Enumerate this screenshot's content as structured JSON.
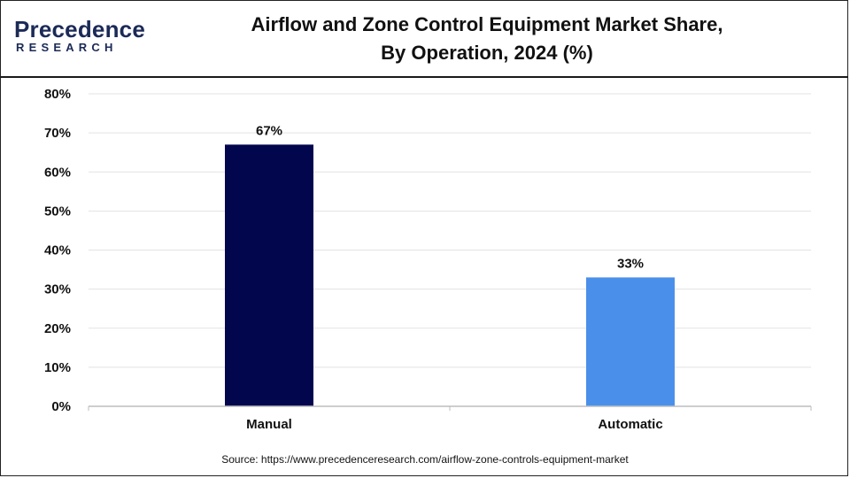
{
  "header": {
    "logo_word": "Precedence",
    "logo_sub": "RESEARCH",
    "title_line1": "Airflow and Zone Control Equipment Market Share,",
    "title_line2": "By Operation, 2024 (%)"
  },
  "chart_data": {
    "type": "bar",
    "categories": [
      "Manual",
      "Automatic"
    ],
    "values": [
      67,
      33
    ],
    "value_labels": [
      "67%",
      "33%"
    ],
    "bar_colors": [
      "#02064d",
      "#4a90eb"
    ],
    "ylim": [
      0,
      80
    ],
    "yticks": [
      0,
      10,
      20,
      30,
      40,
      50,
      60,
      70,
      80
    ],
    "ytick_labels": [
      "0%",
      "10%",
      "20%",
      "30%",
      "40%",
      "50%",
      "60%",
      "70%",
      "80%"
    ],
    "grid": true,
    "xlabel": "",
    "ylabel": ""
  },
  "footer": {
    "source": "Source: https://www.precedenceresearch.com/airflow-zone-controls-equipment-market"
  }
}
